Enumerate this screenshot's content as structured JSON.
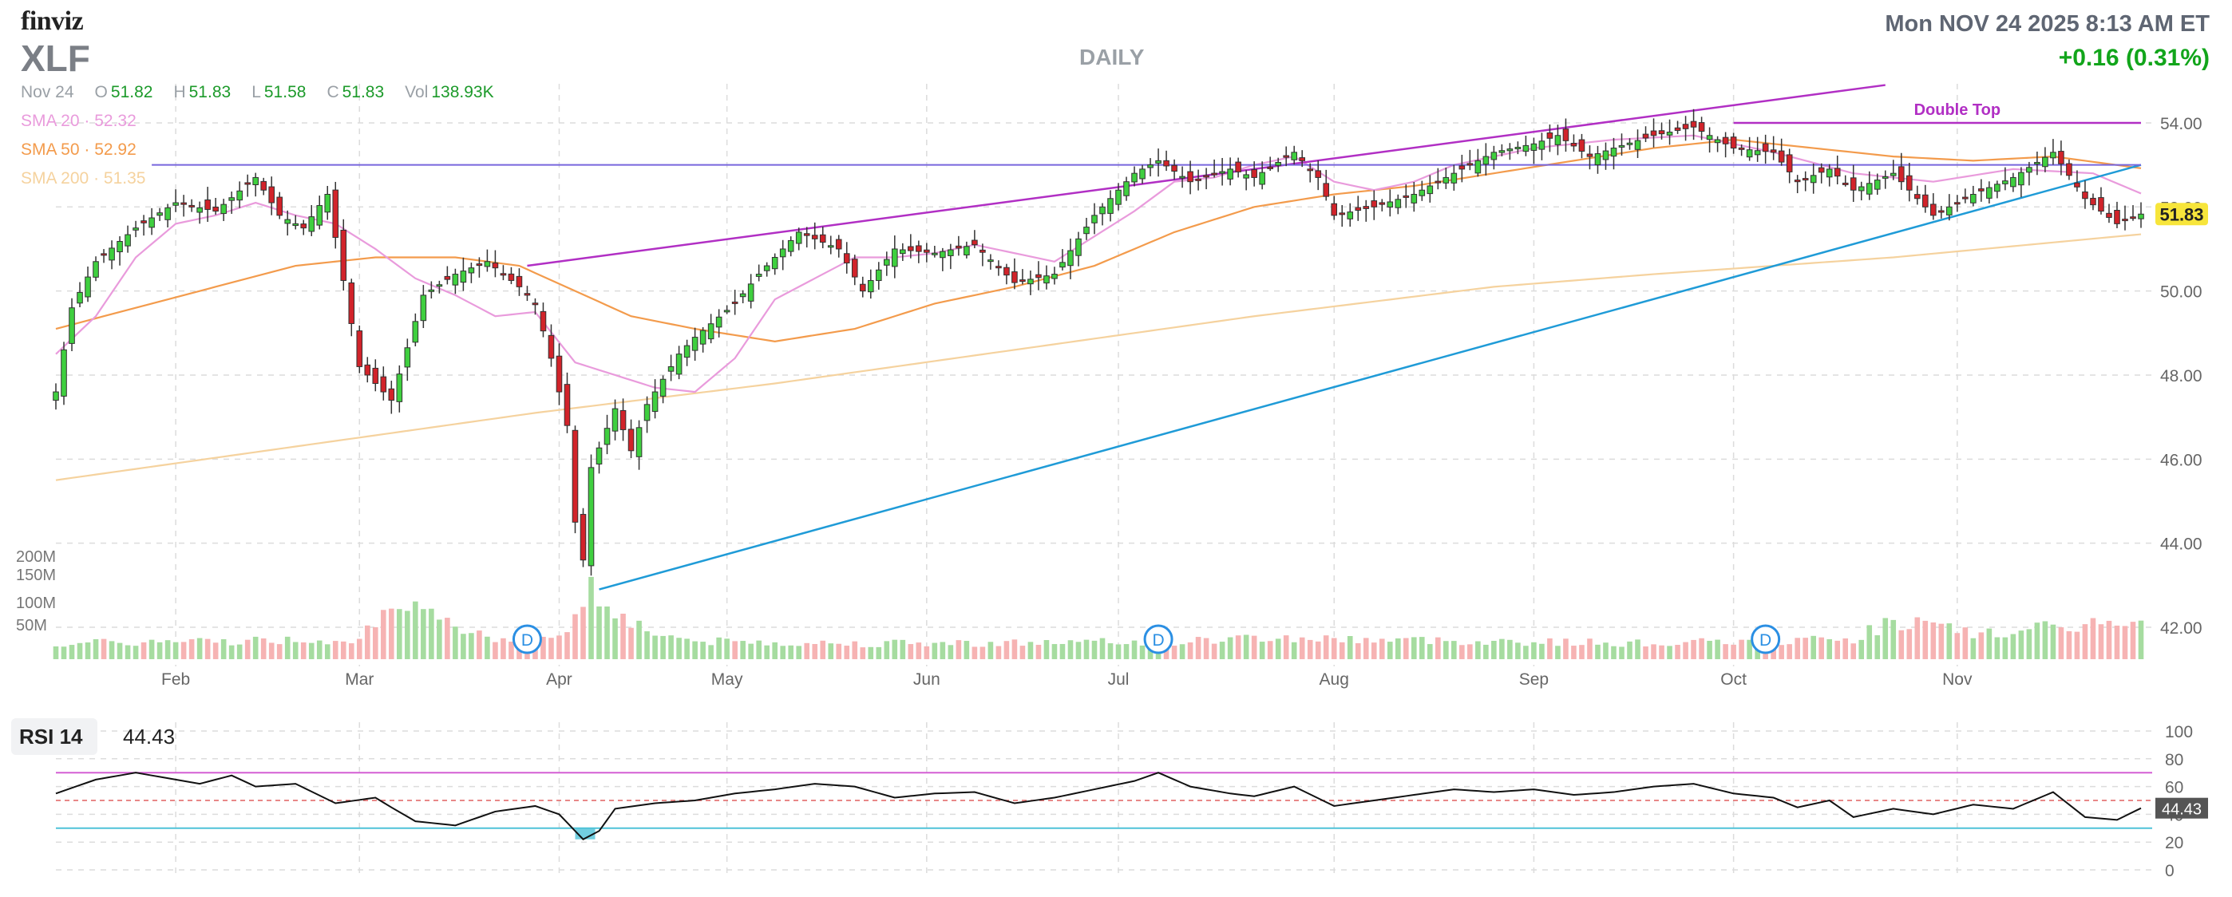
{
  "header": {
    "logo": "finviz",
    "ticker": "XLF",
    "period": "DAILY",
    "datetime": "Mon NOV 24 2025 8:13 AM ET",
    "change": "+0.16 (0.31%)"
  },
  "quote": {
    "date": "Nov 24",
    "open_label": "O",
    "open": "51.82",
    "high_label": "H",
    "high": "51.83",
    "low_label": "L",
    "low": "51.58",
    "close_label": "C",
    "close": "51.83",
    "vol_label": "Vol",
    "vol": "138.93K"
  },
  "sma": [
    {
      "label": "SMA 20",
      "sep": "·",
      "value": "52.32",
      "color": "#e99bdc"
    },
    {
      "label": "SMA 50",
      "sep": "·",
      "value": "52.92",
      "color": "#f39b4c"
    },
    {
      "label": "SMA 200",
      "sep": "·",
      "value": "51.35",
      "color": "#f5d29e"
    }
  ],
  "rsi": {
    "label": "RSI 14",
    "value": "44.43",
    "marker": "44.43",
    "levels": [
      "100",
      "80",
      "60",
      "40",
      "20",
      "0"
    ]
  },
  "colors": {
    "up": "#3fcf3f",
    "down": "#d1232a",
    "vol_up": "#a6dca0",
    "vol_down": "#f6b3b3",
    "rising": "#b12fc4",
    "support": "#1f9bd7",
    "resistance": "#7766dd",
    "double_top": "#b12fc4",
    "rsi_hi": "#d45fd4",
    "rsi_lo": "#4fc2d8",
    "price_tag": "#f7e53b"
  },
  "annotations": {
    "double_top": "Double Top",
    "dividend": "D"
  },
  "chart_data": {
    "type": "candlestick",
    "title": "XLF",
    "period": "DAILY",
    "months": [
      "Feb",
      "Mar",
      "Apr",
      "May",
      "Jun",
      "Jul",
      "Aug",
      "Sep",
      "Oct",
      "Nov"
    ],
    "price_ticks": [
      "42.00",
      "44.00",
      "46.00",
      "48.00",
      "50.00",
      "52.00",
      "54.00"
    ],
    "ylim": [
      41.5,
      55
    ],
    "last_price": "51.83",
    "volume_ticks": [
      "200M",
      "150M",
      "100M",
      "50M"
    ],
    "dividends": [
      "Mar 21",
      "Jun 23",
      "Sep 22"
    ],
    "close_anchors": [
      [
        0,
        47.6
      ],
      [
        2,
        49.6
      ],
      [
        5,
        50.7
      ],
      [
        10,
        51.5
      ],
      [
        15,
        52.1
      ],
      [
        20,
        51.9
      ],
      [
        25,
        52.7
      ],
      [
        28,
        51.8
      ],
      [
        31,
        51.5
      ],
      [
        34,
        52.3
      ],
      [
        38,
        48.2
      ],
      [
        42,
        47.4
      ],
      [
        46,
        49.9
      ],
      [
        50,
        50.4
      ],
      [
        54,
        50.7
      ],
      [
        58,
        50.1
      ],
      [
        60,
        49.7
      ],
      [
        62,
        48.4
      ],
      [
        64,
        46.8
      ],
      [
        65,
        44.5
      ],
      [
        66,
        43.6
      ],
      [
        67,
        45.8
      ],
      [
        70,
        47.2
      ],
      [
        72,
        46.2
      ],
      [
        74,
        47.3
      ],
      [
        78,
        48.5
      ],
      [
        80,
        48.9
      ],
      [
        85,
        49.7
      ],
      [
        88,
        50.4
      ],
      [
        93,
        51.4
      ],
      [
        98,
        51.0
      ],
      [
        101,
        50.0
      ],
      [
        105,
        51.0
      ],
      [
        110,
        50.9
      ],
      [
        115,
        51.1
      ],
      [
        120,
        50.2
      ],
      [
        125,
        50.4
      ],
      [
        130,
        51.8
      ],
      [
        135,
        52.8
      ],
      [
        138,
        53.1
      ],
      [
        142,
        52.6
      ],
      [
        147,
        52.9
      ],
      [
        150,
        52.7
      ],
      [
        155,
        53.3
      ],
      [
        158,
        52.7
      ],
      [
        160,
        51.8
      ],
      [
        165,
        52.0
      ],
      [
        170,
        52.3
      ],
      [
        175,
        52.8
      ],
      [
        180,
        53.3
      ],
      [
        185,
        53.5
      ],
      [
        188,
        53.7
      ],
      [
        192,
        53.2
      ],
      [
        195,
        53.4
      ],
      [
        200,
        53.7
      ],
      [
        205,
        53.9
      ],
      [
        210,
        53.4
      ],
      [
        215,
        53.3
      ],
      [
        218,
        52.6
      ],
      [
        222,
        52.9
      ],
      [
        225,
        52.4
      ],
      [
        230,
        52.8
      ],
      [
        235,
        51.8
      ],
      [
        240,
        52.3
      ],
      [
        245,
        52.7
      ],
      [
        250,
        53.3
      ],
      [
        254,
        52.2
      ],
      [
        258,
        51.6
      ],
      [
        261,
        51.83
      ]
    ],
    "sma20_anchors": [
      [
        0,
        48.5
      ],
      [
        5,
        49.4
      ],
      [
        10,
        50.8
      ],
      [
        15,
        51.6
      ],
      [
        20,
        51.8
      ],
      [
        25,
        52.1
      ],
      [
        30,
        51.8
      ],
      [
        35,
        51.6
      ],
      [
        40,
        51.0
      ],
      [
        45,
        50.3
      ],
      [
        50,
        49.9
      ],
      [
        55,
        49.4
      ],
      [
        60,
        49.5
      ],
      [
        65,
        48.3
      ],
      [
        70,
        48.0
      ],
      [
        75,
        47.7
      ],
      [
        80,
        47.6
      ],
      [
        85,
        48.4
      ],
      [
        90,
        49.8
      ],
      [
        95,
        50.3
      ],
      [
        100,
        50.8
      ],
      [
        105,
        50.8
      ],
      [
        110,
        50.9
      ],
      [
        115,
        51.1
      ],
      [
        125,
        50.7
      ],
      [
        130,
        51.3
      ],
      [
        135,
        51.9
      ],
      [
        140,
        52.6
      ],
      [
        145,
        52.7
      ],
      [
        150,
        53.0
      ],
      [
        155,
        53.2
      ],
      [
        160,
        52.6
      ],
      [
        165,
        52.4
      ],
      [
        170,
        52.6
      ],
      [
        175,
        53.0
      ],
      [
        180,
        53.2
      ],
      [
        185,
        53.4
      ],
      [
        195,
        53.6
      ],
      [
        205,
        53.7
      ],
      [
        215,
        53.3
      ],
      [
        225,
        52.8
      ],
      [
        235,
        52.6
      ],
      [
        245,
        52.9
      ],
      [
        255,
        52.8
      ],
      [
        261,
        52.32
      ]
    ],
    "sma50_anchors": [
      [
        0,
        49.1
      ],
      [
        10,
        49.6
      ],
      [
        20,
        50.1
      ],
      [
        30,
        50.6
      ],
      [
        40,
        50.8
      ],
      [
        50,
        50.8
      ],
      [
        58,
        50.6
      ],
      [
        65,
        50.0
      ],
      [
        72,
        49.4
      ],
      [
        80,
        49.1
      ],
      [
        90,
        48.8
      ],
      [
        100,
        49.1
      ],
      [
        110,
        49.7
      ],
      [
        120,
        50.1
      ],
      [
        130,
        50.6
      ],
      [
        140,
        51.4
      ],
      [
        150,
        52.0
      ],
      [
        160,
        52.3
      ],
      [
        170,
        52.5
      ],
      [
        180,
        52.8
      ],
      [
        190,
        53.1
      ],
      [
        200,
        53.4
      ],
      [
        210,
        53.6
      ],
      [
        220,
        53.4
      ],
      [
        230,
        53.2
      ],
      [
        240,
        53.1
      ],
      [
        250,
        53.2
      ],
      [
        261,
        52.92
      ]
    ],
    "sma200_anchors": [
      [
        0,
        45.5
      ],
      [
        30,
        46.3
      ],
      [
        60,
        47.1
      ],
      [
        90,
        47.8
      ],
      [
        120,
        48.6
      ],
      [
        150,
        49.4
      ],
      [
        180,
        50.1
      ],
      [
        200,
        50.4
      ],
      [
        230,
        50.8
      ],
      [
        261,
        51.35
      ]
    ],
    "volume_heights": [
      [
        0,
        0.22
      ],
      [
        37,
        0.28
      ],
      [
        40,
        0.55
      ],
      [
        45,
        0.65
      ],
      [
        50,
        0.5
      ],
      [
        55,
        0.3
      ],
      [
        63,
        0.35
      ],
      [
        65,
        0.6
      ],
      [
        67,
        1.0
      ],
      [
        70,
        0.7
      ],
      [
        74,
        0.4
      ],
      [
        80,
        0.25
      ],
      [
        100,
        0.22
      ],
      [
        140,
        0.24
      ],
      [
        150,
        0.3
      ],
      [
        180,
        0.25
      ],
      [
        200,
        0.22
      ],
      [
        225,
        0.28
      ],
      [
        230,
        0.55
      ],
      [
        240,
        0.35
      ],
      [
        247,
        0.4
      ],
      [
        255,
        0.5
      ],
      [
        261,
        0.45
      ]
    ],
    "rsi_anchors": [
      [
        0,
        55
      ],
      [
        5,
        65
      ],
      [
        10,
        70
      ],
      [
        15,
        65
      ],
      [
        18,
        62
      ],
      [
        22,
        68
      ],
      [
        25,
        60
      ],
      [
        30,
        62
      ],
      [
        35,
        48
      ],
      [
        40,
        52
      ],
      [
        42,
        45
      ],
      [
        45,
        35
      ],
      [
        50,
        32
      ],
      [
        55,
        42
      ],
      [
        60,
        46
      ],
      [
        63,
        40
      ],
      [
        65,
        28
      ],
      [
        66,
        22
      ],
      [
        68,
        28
      ],
      [
        70,
        44
      ],
      [
        75,
        48
      ],
      [
        80,
        50
      ],
      [
        85,
        55
      ],
      [
        90,
        58
      ],
      [
        95,
        62
      ],
      [
        100,
        60
      ],
      [
        105,
        52
      ],
      [
        110,
        55
      ],
      [
        115,
        56
      ],
      [
        120,
        48
      ],
      [
        125,
        52
      ],
      [
        130,
        58
      ],
      [
        135,
        64
      ],
      [
        138,
        70
      ],
      [
        142,
        60
      ],
      [
        147,
        55
      ],
      [
        150,
        53
      ],
      [
        155,
        60
      ],
      [
        160,
        46
      ],
      [
        165,
        50
      ],
      [
        170,
        54
      ],
      [
        175,
        58
      ],
      [
        180,
        56
      ],
      [
        185,
        58
      ],
      [
        190,
        54
      ],
      [
        195,
        56
      ],
      [
        200,
        60
      ],
      [
        205,
        62
      ],
      [
        210,
        55
      ],
      [
        215,
        52
      ],
      [
        218,
        45
      ],
      [
        222,
        50
      ],
      [
        225,
        38
      ],
      [
        230,
        44
      ],
      [
        235,
        40
      ],
      [
        240,
        47
      ],
      [
        245,
        44
      ],
      [
        250,
        56
      ],
      [
        254,
        38
      ],
      [
        258,
        36
      ],
      [
        261,
        44.43
      ]
    ]
  }
}
